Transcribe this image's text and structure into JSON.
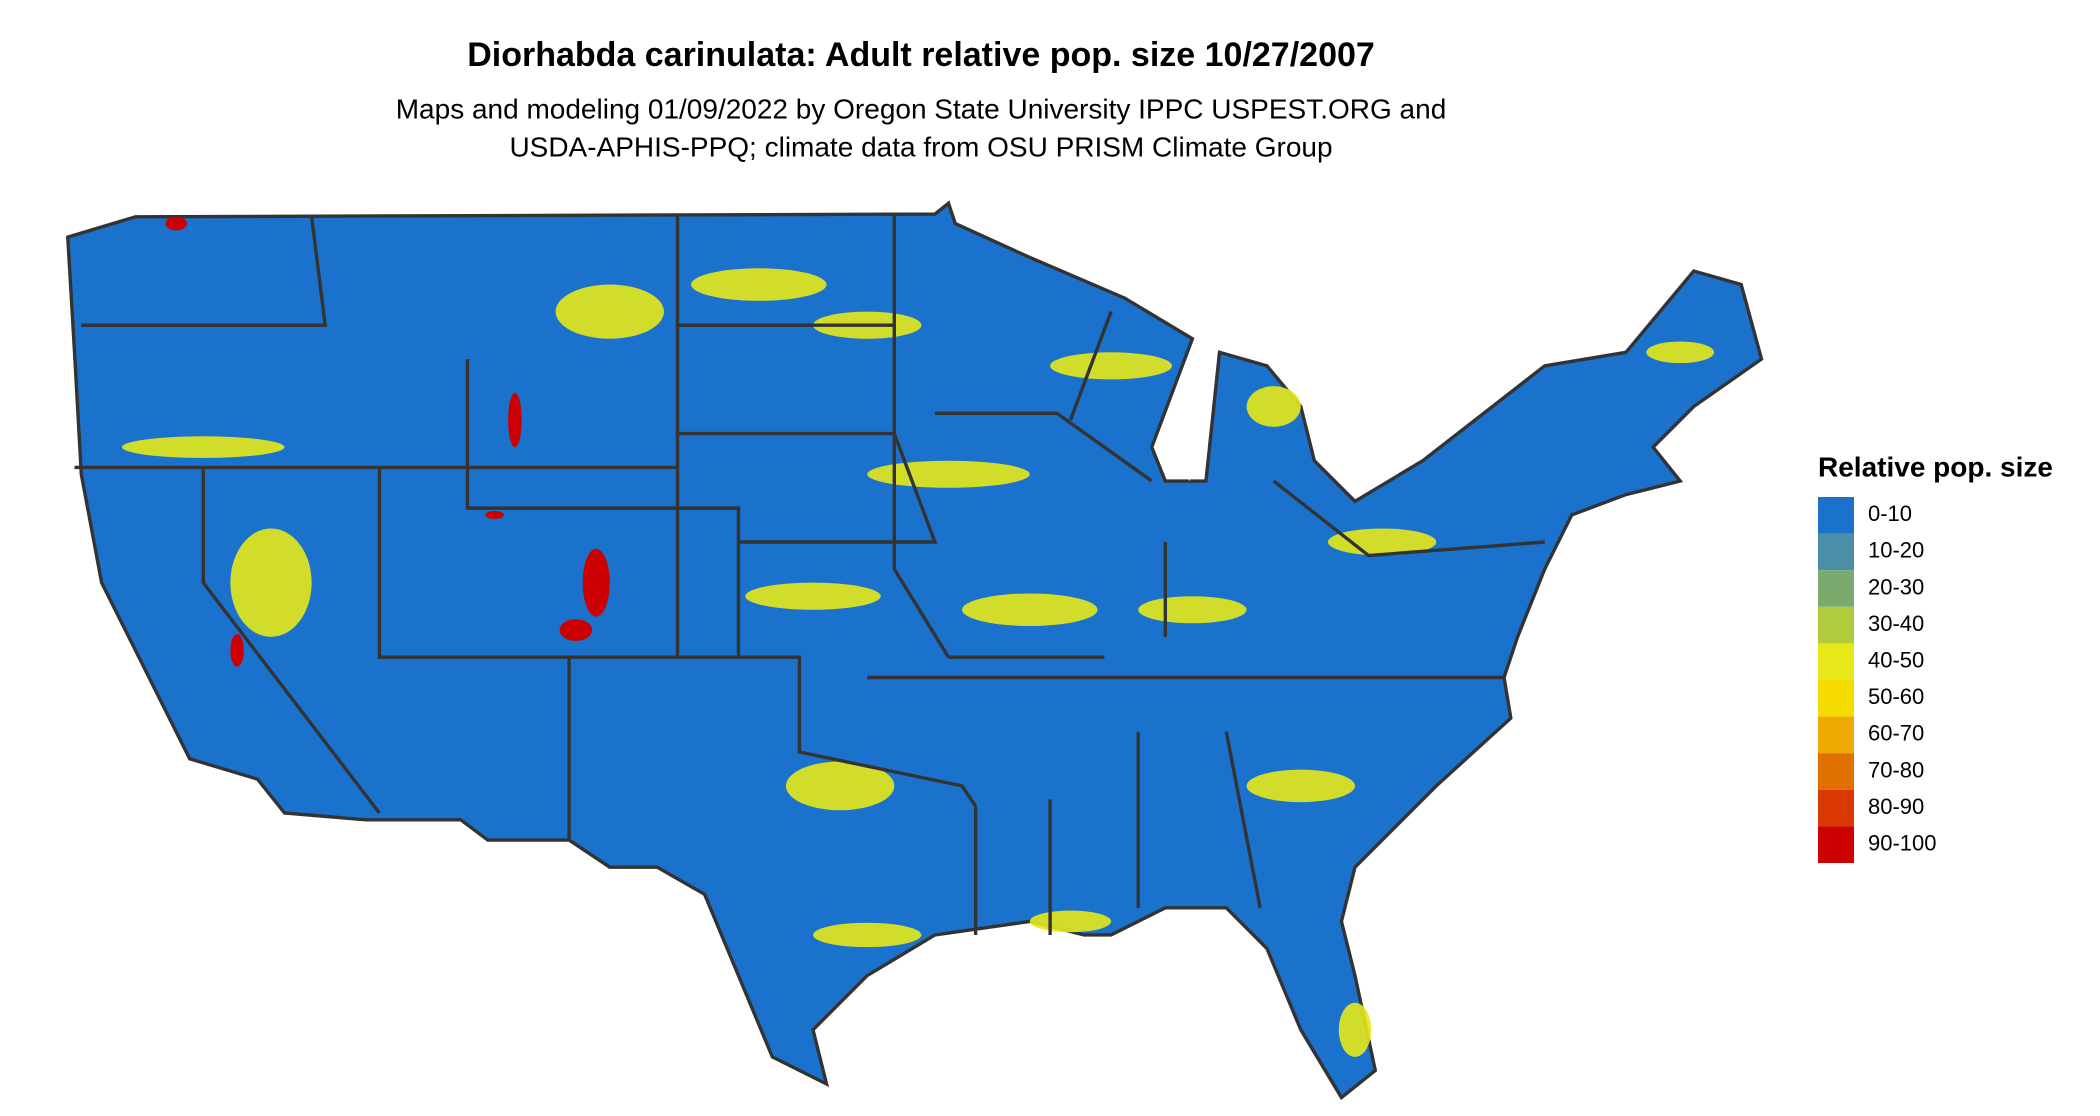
{
  "title": "Diorhabda carinulata: Adult relative pop. size 10/27/2007",
  "subtitle": [
    "Maps and modeling 01/09/2022 by Oregon State University IPPC USPEST.ORG and",
    "USDA-APHIS-PPQ; climate data from OSU PRISM Climate Group"
  ],
  "legend": {
    "title": "Relative pop. size",
    "items": [
      {
        "label": "0-10",
        "color": "#1a72cc"
      },
      {
        "label": "10-20",
        "color": "#4a8fa6"
      },
      {
        "label": "20-30",
        "color": "#7aab6e"
      },
      {
        "label": "30-40",
        "color": "#b0cc3c"
      },
      {
        "label": "40-50",
        "color": "#e6e81a"
      },
      {
        "label": "50-60",
        "color": "#f5dc00"
      },
      {
        "label": "60-70",
        "color": "#eeaa00"
      },
      {
        "label": "70-80",
        "color": "#e07000"
      },
      {
        "label": "80-90",
        "color": "#d93800"
      },
      {
        "label": "90-100",
        "color": "#cc0000"
      }
    ]
  }
}
